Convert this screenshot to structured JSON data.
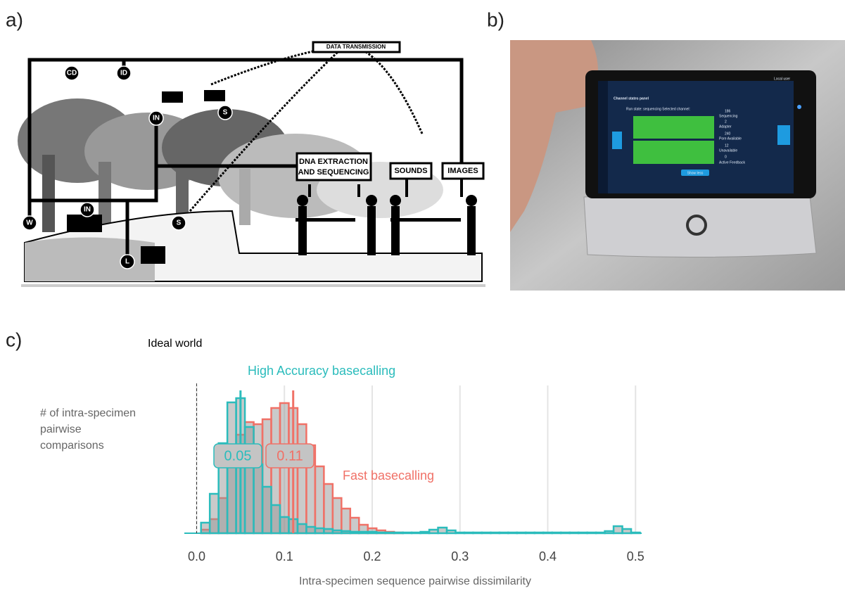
{
  "panel_labels": [
    "a)",
    "b)",
    "c)"
  ],
  "panel_a": {
    "data_transmission": "DATA TRANSMISSION",
    "markers": [
      "CD",
      "ID",
      "IN",
      "S",
      "W",
      "IN",
      "S",
      "L"
    ],
    "dna_box": [
      "DNA EXTRACTION",
      "AND SEQUENCING"
    ],
    "sounds": "SOUNDS",
    "images": "IMAGES"
  },
  "panel_b": {
    "user": "Local user",
    "panel_title": "Channel states panel",
    "run_state": "Run state: sequencing   Selected channel:",
    "states": [
      {
        "count": 186,
        "label": "Sequencing"
      },
      {
        "count": 2,
        "label": "Adapter"
      },
      {
        "count": 240,
        "label": "Pore Available"
      },
      {
        "count": 12,
        "label": "Unavailable"
      },
      {
        "count": 0,
        "label": "Active Feedback"
      }
    ],
    "button": "Show less"
  },
  "chart_data": {
    "type": "histogram",
    "y_label": [
      "# of intra-specimen",
      "pairwise",
      "comparisons"
    ],
    "x_label": "Intra-specimen sequence pairwise dissimilarity",
    "bins": [
      0.005,
      0.015,
      0.025,
      0.035,
      0.045,
      0.055,
      0.065,
      0.075,
      0.085,
      0.095,
      0.105,
      0.115,
      0.125,
      0.135,
      0.145,
      0.155,
      0.165,
      0.175,
      0.185,
      0.195,
      0.205,
      0.215,
      0.225,
      0.235,
      0.245,
      0.255,
      0.265,
      0.275,
      0.285,
      0.295,
      0.305,
      0.315,
      0.325,
      0.335,
      0.345,
      0.355,
      0.365,
      0.375,
      0.385,
      0.395,
      0.405,
      0.415,
      0.425,
      0.435,
      0.445,
      0.455,
      0.465,
      0.475,
      0.485,
      0.495,
      0.505
    ],
    "series": [
      {
        "name": "Fast basecalling",
        "color": "#f07167",
        "median": 0.11,
        "values": [
          5,
          20,
          50,
          105,
          140,
          158,
          155,
          162,
          178,
          185,
          178,
          155,
          125,
          95,
          70,
          50,
          35,
          22,
          12,
          7,
          4,
          2,
          1,
          0,
          0,
          0,
          0,
          0,
          0,
          0,
          0,
          0,
          0,
          0,
          0,
          0,
          0,
          0,
          0,
          0,
          0,
          0,
          0,
          0,
          0,
          0,
          0,
          0,
          0,
          0
        ]
      },
      {
        "name": "High Accuracy basecalling",
        "color": "#2bbcbc",
        "median": 0.05,
        "values": [
          15,
          56,
          128,
          186,
          192,
          151,
          98,
          66,
          40,
          23,
          20,
          13,
          9,
          7,
          6,
          4,
          3,
          2,
          2,
          2,
          1,
          1,
          1,
          1,
          1,
          2,
          5,
          8,
          4,
          1,
          1,
          1,
          1,
          1,
          1,
          1,
          1,
          1,
          1,
          1,
          1,
          1,
          1,
          1,
          1,
          1,
          3,
          10,
          6,
          1
        ]
      }
    ],
    "annotation": {
      "text": "Ideal world",
      "x": 0
    },
    "xlim": [
      -0.014,
      0.507
    ],
    "ylim": [
      0,
      200
    ],
    "xticks": [
      {
        "value": 0,
        "label": "0.0"
      },
      0.1,
      0.2,
      0.3,
      0.4,
      0.5
    ],
    "grid": true
  }
}
